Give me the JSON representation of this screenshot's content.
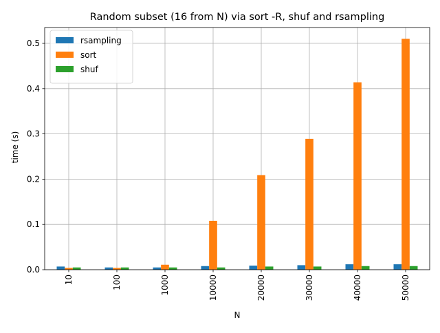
{
  "chart_data": {
    "type": "bar",
    "title": "Random subset (16 from N) via sort -R, shuf and rsampling",
    "xlabel": "N",
    "ylabel": "time (s)",
    "categories": [
      "10",
      "100",
      "1000",
      "10000",
      "20000",
      "30000",
      "40000",
      "50000"
    ],
    "series": [
      {
        "name": "rsampling",
        "color": "#1f77b4",
        "values": [
          0.007,
          0.005,
          0.005,
          0.008,
          0.009,
          0.01,
          0.012,
          0.012
        ]
      },
      {
        "name": "sort",
        "color": "#ff7f0e",
        "values": [
          0.004,
          0.004,
          0.011,
          0.108,
          0.209,
          0.289,
          0.414,
          0.51
        ]
      },
      {
        "name": "shuf",
        "color": "#2ca02c",
        "values": [
          0.005,
          0.005,
          0.005,
          0.005,
          0.007,
          0.007,
          0.008,
          0.008
        ]
      }
    ],
    "ylim": [
      0,
      0.535
    ],
    "yticks": [
      0.0,
      0.1,
      0.2,
      0.3,
      0.4,
      0.5
    ],
    "ytick_labels": [
      "0.0",
      "0.1",
      "0.2",
      "0.3",
      "0.4",
      "0.5"
    ],
    "grid": true,
    "legend_position": "top-left"
  }
}
